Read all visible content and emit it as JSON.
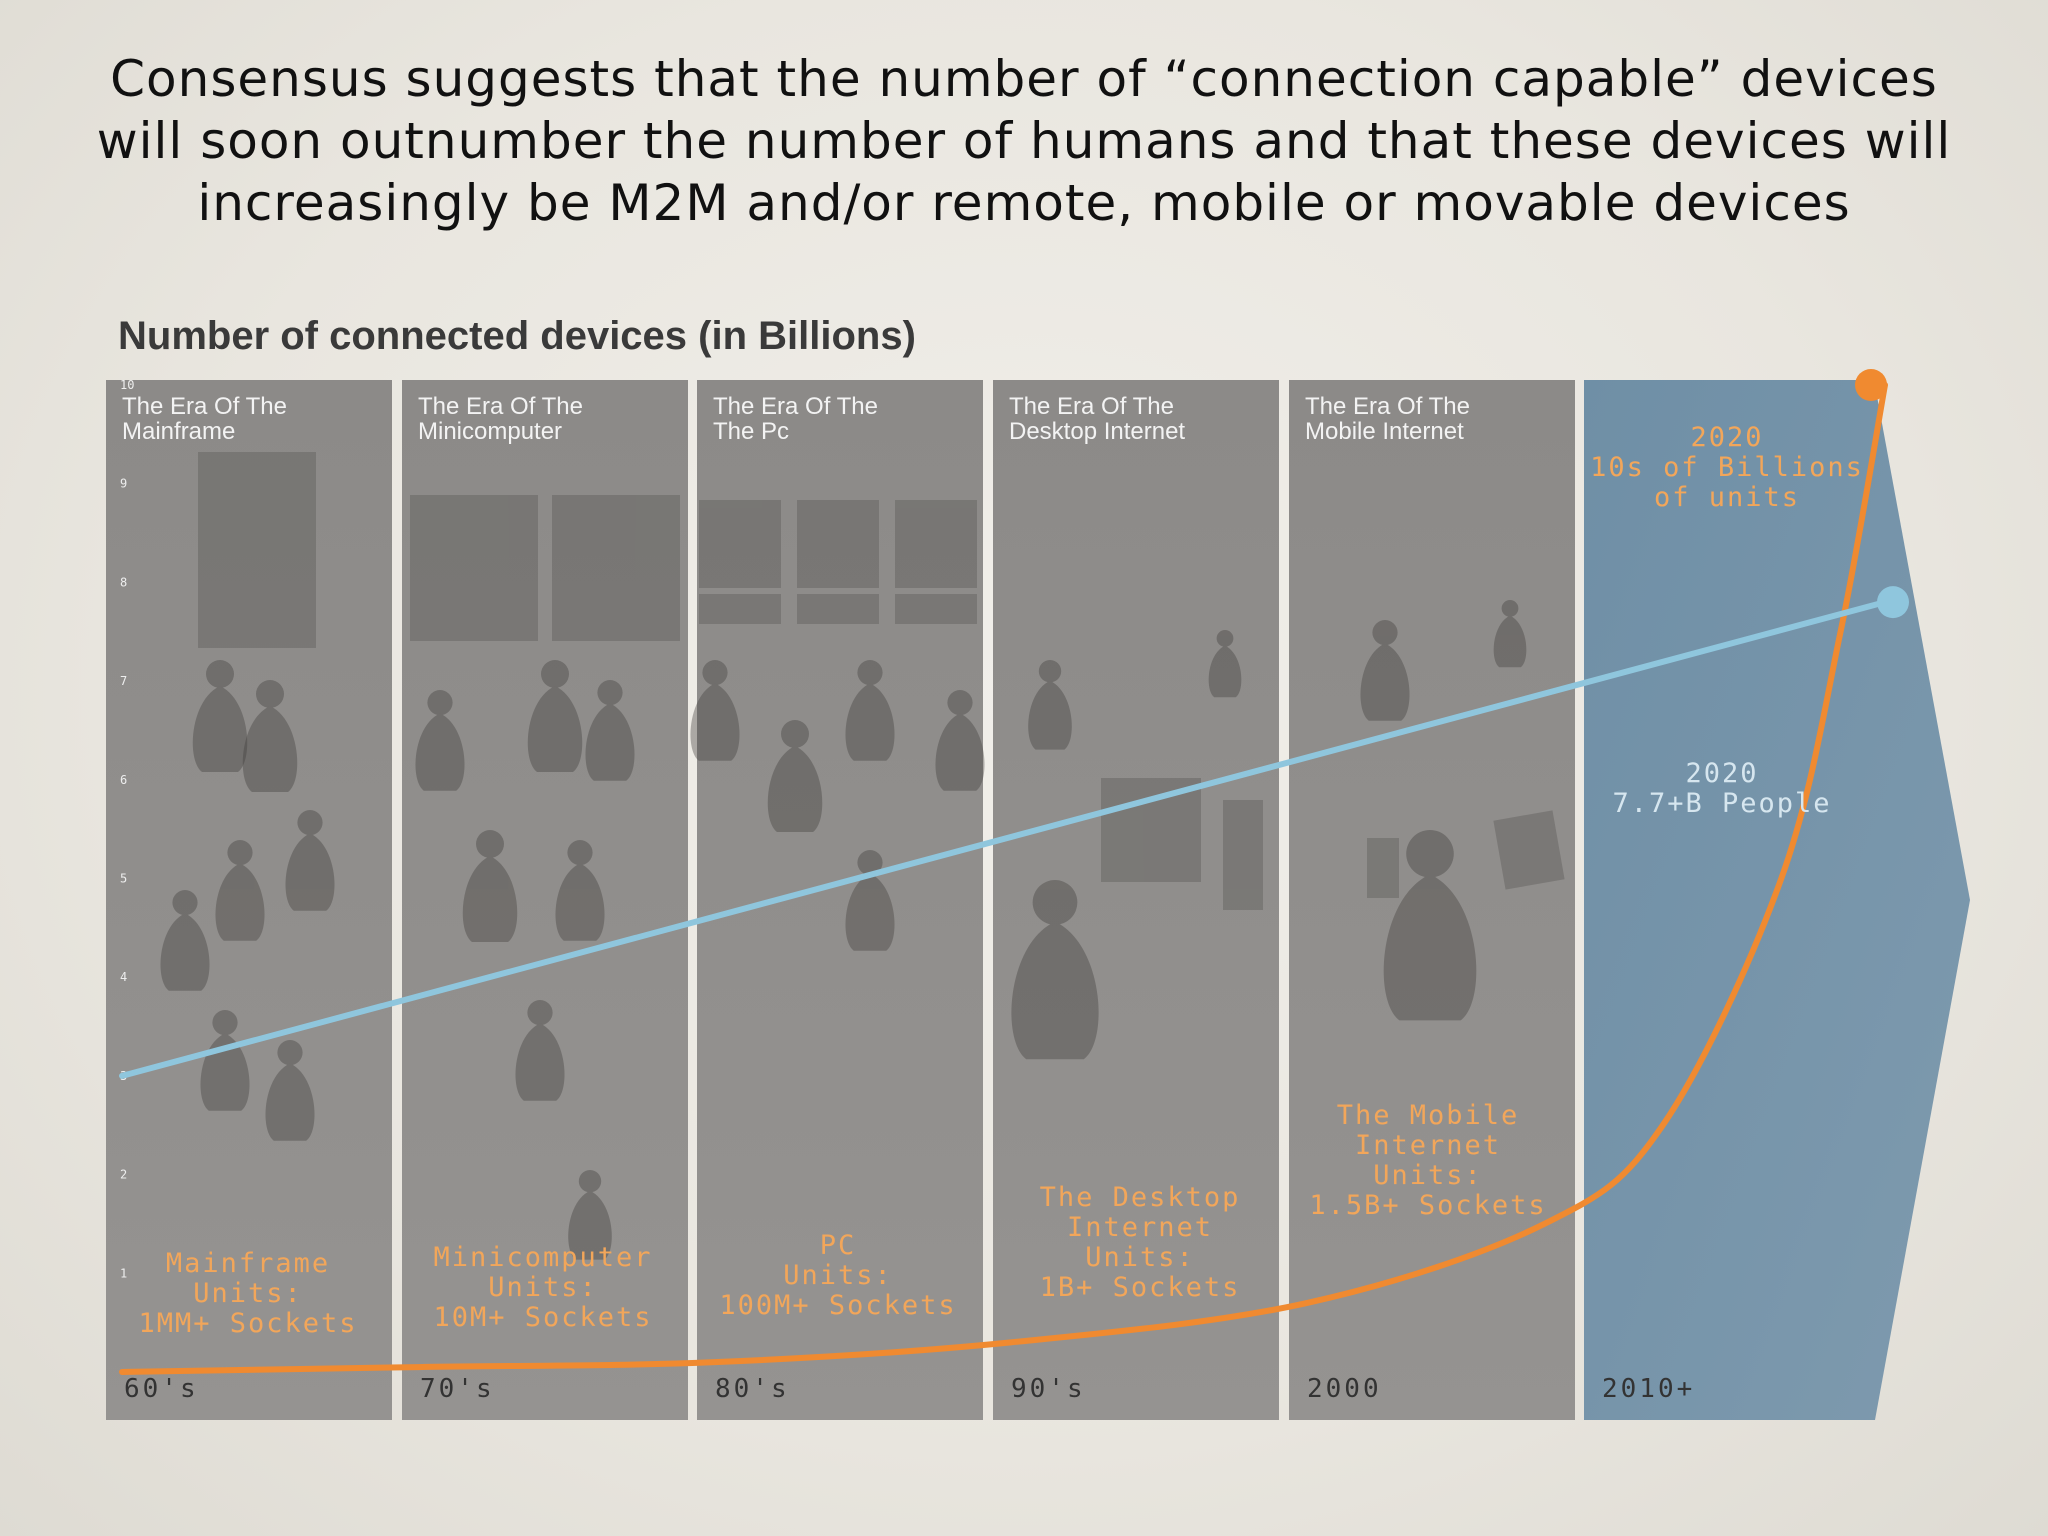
{
  "headline": {
    "lines": [
      "Consensus suggests that the number of “connection capable” devices",
      "will soon outnumber the number of humans and that these devices will",
      "increasingly be M2M and/or remote, mobile or movable devices"
    ]
  },
  "chart_data": {
    "type": "line",
    "title": "Number of connected devices (in Billions)",
    "xlabel": "",
    "ylabel": "",
    "ylim": [
      0,
      10
    ],
    "yticks": [
      "1",
      "2",
      "3",
      "4",
      "5",
      "6",
      "7",
      "8",
      "9",
      "10"
    ],
    "grid": false,
    "categories": [
      "60's",
      "70's",
      "80's",
      "90's",
      "2000",
      "2010+"
    ],
    "eras": [
      {
        "title": [
          "The Era Of The",
          "Mainframe"
        ],
        "decade": "60's",
        "units": [
          "Mainframe",
          "Units:",
          "1MM+ Sockets"
        ],
        "highlight": false
      },
      {
        "title": [
          "The Era Of The",
          "Minicomputer"
        ],
        "decade": "70's",
        "units": [
          "Minicomputer",
          "Units:",
          "10M+ Sockets"
        ],
        "highlight": false
      },
      {
        "title": [
          "The Era Of The",
          "The Pc"
        ],
        "decade": "80's",
        "units": [
          "PC",
          "Units:",
          "100M+ Sockets"
        ],
        "highlight": false
      },
      {
        "title": [
          "The Era Of The",
          "Desktop Internet"
        ],
        "decade": "90's",
        "units": [
          "The Desktop",
          "Internet",
          "Units:",
          "1B+ Sockets"
        ],
        "highlight": false
      },
      {
        "title": [
          "The Era Of The",
          "Mobile Internet"
        ],
        "decade": "2000",
        "units": [
          "The Mobile",
          "Internet",
          "Units:",
          "1.5B+ Sockets"
        ],
        "highlight": false
      },
      {
        "title": [],
        "decade": "2010+",
        "units": [],
        "highlight": true
      }
    ],
    "series": [
      {
        "color": "#f08a30",
        "x": [
          0,
          1,
          2,
          3,
          4,
          4.8,
          5.2,
          5.6,
          5.8,
          5.95
        ],
        "y": [
          0.0,
          0.05,
          0.1,
          0.3,
          0.7,
          1.5,
          2.5,
          5.0,
          7.5,
          10.0
        ]
      },
      {
        "color": "#8fc6dd",
        "x": [
          0,
          5.95
        ],
        "y": [
          3.0,
          7.8
        ]
      }
    ],
    "annotations": [
      {
        "lines": [
          "2020",
          "10s of Billions",
          "of units"
        ],
        "color": "#f2a65a"
      },
      {
        "lines": [
          "2020",
          "7.7+B People"
        ],
        "color": "#d6e6ef"
      }
    ]
  },
  "colors": {
    "era_panel": "#8f8d8b",
    "highlight_panel": "#6f8fa6",
    "devices_line": "#f08a30",
    "people_line": "#8fc6dd"
  }
}
